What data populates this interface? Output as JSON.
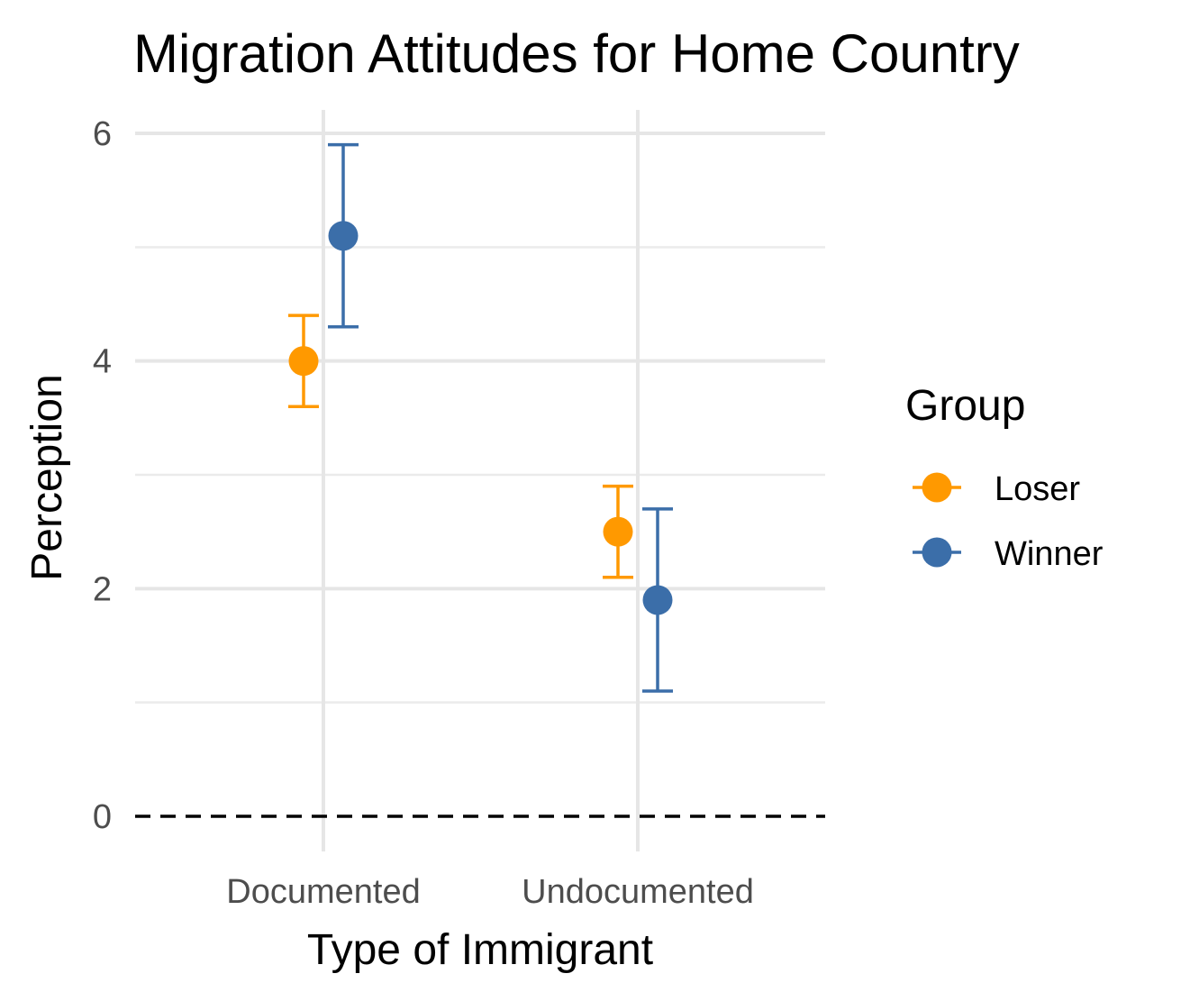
{
  "chart_data": {
    "type": "scatter",
    "title": "Migration Attitudes for Home Country",
    "xlabel": "Type of Immigrant",
    "ylabel": "Perception",
    "categories": [
      "Documented",
      "Undocumented"
    ],
    "ylim": [
      0,
      6
    ],
    "yticks": [
      "0",
      "2",
      "4",
      "6"
    ],
    "grid": true,
    "reference_line": {
      "y": 0,
      "style": "dashed"
    },
    "legend": {
      "title": "Group",
      "position": "right"
    },
    "series": [
      {
        "name": "Loser",
        "color": "#ff9900",
        "values": [
          4.0,
          2.5
        ],
        "lower": [
          3.6,
          2.1
        ],
        "upper": [
          4.4,
          2.9
        ]
      },
      {
        "name": "Winner",
        "color": "#3b6ea9",
        "values": [
          5.1,
          1.9
        ],
        "lower": [
          4.3,
          1.1
        ],
        "upper": [
          5.9,
          2.7
        ]
      }
    ]
  }
}
